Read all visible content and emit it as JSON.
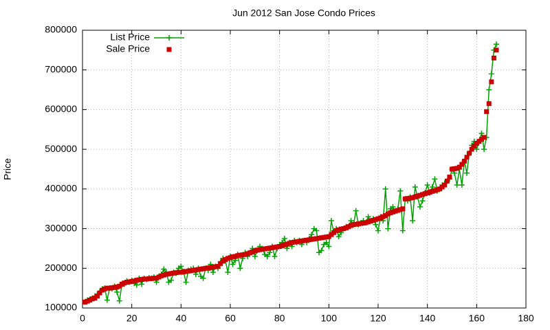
{
  "chart_data": {
    "type": "line",
    "title": "Jun 2012 San Jose Condo Prices",
    "y_label": "Price",
    "x": [
      1,
      2,
      3,
      4,
      5,
      6,
      7,
      8,
      9,
      10,
      11,
      12,
      13,
      14,
      15,
      16,
      17,
      18,
      19,
      20,
      21,
      22,
      23,
      24,
      25,
      26,
      27,
      28,
      29,
      30,
      31,
      32,
      33,
      34,
      35,
      36,
      37,
      38,
      39,
      40,
      41,
      42,
      43,
      44,
      45,
      46,
      47,
      48,
      49,
      50,
      51,
      52,
      53,
      54,
      55,
      56,
      57,
      58,
      59,
      60,
      61,
      62,
      63,
      64,
      65,
      66,
      67,
      68,
      69,
      70,
      71,
      72,
      73,
      74,
      75,
      76,
      77,
      78,
      79,
      80,
      81,
      82,
      83,
      84,
      85,
      86,
      87,
      88,
      89,
      90,
      91,
      92,
      93,
      94,
      95,
      96,
      97,
      98,
      99,
      100,
      101,
      102,
      103,
      104,
      105,
      106,
      107,
      108,
      109,
      110,
      111,
      112,
      113,
      114,
      115,
      116,
      117,
      118,
      119,
      120,
      121,
      122,
      123,
      124,
      125,
      126,
      127,
      128,
      129,
      130,
      131,
      132,
      133,
      134,
      135,
      136,
      137,
      138,
      139,
      140,
      141,
      142,
      143,
      144,
      145,
      146,
      147,
      148,
      149,
      150,
      151,
      152,
      153,
      154,
      155,
      156,
      157,
      158,
      159,
      160,
      161,
      162,
      163,
      164,
      165,
      166,
      167,
      168
    ],
    "series": [
      {
        "name": "List Price",
        "color": "#00a000",
        "style": "linespoints",
        "values": [
          115000,
          120000,
          122000,
          125000,
          130000,
          135000,
          140000,
          148000,
          150000,
          120000,
          150000,
          148000,
          155000,
          140000,
          118000,
          160000,
          160000,
          168000,
          165000,
          170000,
          162000,
          158000,
          175000,
          160000,
          175000,
          172000,
          176000,
          175000,
          178000,
          165000,
          180000,
          185000,
          198000,
          190000,
          165000,
          170000,
          190000,
          188000,
          200000,
          205000,
          192000,
          165000,
          195000,
          198000,
          200000,
          185000,
          200000,
          180000,
          175000,
          200000,
          195000,
          210000,
          190000,
          205000,
          200000,
          215000,
          225000,
          220000,
          190000,
          230000,
          210000,
          220000,
          235000,
          200000,
          225000,
          240000,
          230000,
          240000,
          250000,
          230000,
          245000,
          255000,
          250000,
          235000,
          230000,
          240000,
          255000,
          230000,
          250000,
          260000,
          265000,
          275000,
          250000,
          265000,
          255000,
          270000,
          265000,
          270000,
          260000,
          270000,
          265000,
          275000,
          285000,
          300000,
          295000,
          240000,
          245000,
          260000,
          265000,
          255000,
          320000,
          290000,
          300000,
          280000,
          290000,
          300000,
          305000,
          305000,
          320000,
          310000,
          345000,
          310000,
          315000,
          320000,
          315000,
          330000,
          320000,
          325000,
          310000,
          295000,
          330000,
          320000,
          400000,
          300000,
          350000,
          355000,
          345000,
          350000,
          395000,
          295000,
          375000,
          370000,
          380000,
          320000,
          405000,
          380000,
          355000,
          370000,
          390000,
          410000,
          390000,
          405000,
          425000,
          395000,
          400000,
          410000,
          415000,
          420000,
          425000,
          450000,
          440000,
          410000,
          450000,
          410000,
          470000,
          440000,
          490000,
          510000,
          520000,
          500000,
          520000,
          540000,
          500000,
          530000,
          650000,
          690000,
          750000,
          765000
        ]
      },
      {
        "name": "Sale Price",
        "color": "#cc0000",
        "style": "points",
        "values": [
          115000,
          117000,
          120000,
          123000,
          125000,
          130000,
          138000,
          145000,
          148000,
          150000,
          150000,
          151000,
          152000,
          153000,
          155000,
          160000,
          163000,
          165000,
          166000,
          167000,
          168000,
          170000,
          171000,
          172000,
          173000,
          173000,
          174000,
          174000,
          175000,
          175000,
          178000,
          181000,
          183000,
          185000,
          186000,
          187000,
          188000,
          189000,
          190000,
          190000,
          191000,
          192000,
          193000,
          194000,
          195000,
          196000,
          197000,
          198000,
          199000,
          200000,
          201000,
          202000,
          203000,
          204000,
          205000,
          212000,
          218000,
          222000,
          225000,
          227000,
          229000,
          230000,
          232000,
          233000,
          234000,
          235000,
          237000,
          239000,
          241000,
          244000,
          246000,
          247000,
          248000,
          249000,
          250000,
          251000,
          252000,
          253000,
          254000,
          255000,
          257000,
          259000,
          261000,
          263000,
          265000,
          266000,
          267000,
          268000,
          269000,
          270000,
          271000,
          272000,
          273000,
          274000,
          275000,
          276000,
          277000,
          278000,
          279000,
          280000,
          285000,
          290000,
          295000,
          297000,
          299000,
          300000,
          302000,
          305000,
          308000,
          310000,
          311000,
          312000,
          313000,
          314000,
          315000,
          317000,
          319000,
          321000,
          323000,
          325000,
          327000,
          330000,
          333000,
          337000,
          340000,
          342000,
          344000,
          346000,
          348000,
          350000,
          375000,
          376000,
          377000,
          378000,
          380000,
          382000,
          384000,
          386000,
          388000,
          390000,
          392000,
          394000,
          396000,
          398000,
          400000,
          405000,
          410000,
          420000,
          430000,
          450000,
          451000,
          452000,
          455000,
          462000,
          470000,
          480000,
          490000,
          500000,
          508000,
          515000,
          520000,
          525000,
          530000,
          595000,
          615000,
          670000,
          730000,
          750000
        ]
      }
    ],
    "xlim": [
      0,
      180
    ],
    "xticks": [
      0,
      20,
      40,
      60,
      80,
      100,
      120,
      140,
      160,
      180
    ],
    "ylim": [
      100000,
      800000
    ],
    "yticks": [
      100000,
      200000,
      300000,
      400000,
      500000,
      600000,
      700000,
      800000
    ],
    "grid": true,
    "legend": "top-left"
  }
}
